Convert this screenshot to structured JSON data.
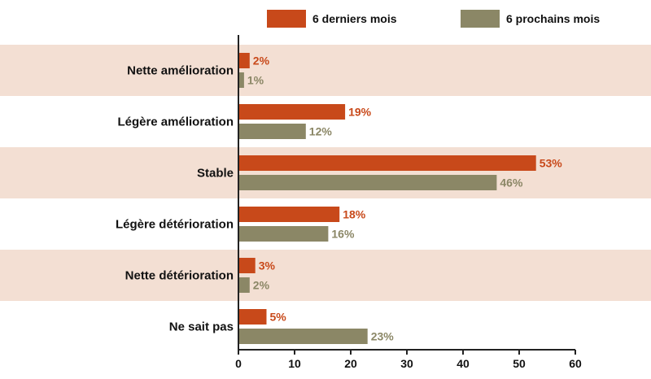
{
  "chart_data": {
    "type": "bar",
    "orientation": "horizontal",
    "categories": [
      "Nette amélioration",
      "Légère amélioration",
      "Stable",
      "Légère détérioration",
      "Nette détérioration",
      "Ne sait pas"
    ],
    "series": [
      {
        "name": "6 derniers mois",
        "color": "#c8491a",
        "values": [
          2,
          19,
          53,
          18,
          3,
          5
        ],
        "labels": [
          "2%",
          "19%",
          "53%",
          "18%",
          "3%",
          "5%"
        ]
      },
      {
        "name": "6 prochains mois",
        "color": "#8b8766",
        "values": [
          1,
          12,
          46,
          16,
          2,
          23
        ],
        "labels": [
          "1%",
          "12%",
          "46%",
          "16%",
          "2%",
          "23%"
        ]
      }
    ],
    "xlim": [
      0,
      60
    ],
    "xticks": [
      0,
      10,
      20,
      30,
      40,
      50,
      60
    ],
    "xtick_labels": [
      "0",
      "10",
      "20",
      "30",
      "40",
      "50",
      "60"
    ],
    "band_color": "#f3dfd3",
    "legend_position": "top-right",
    "grid": false
  }
}
